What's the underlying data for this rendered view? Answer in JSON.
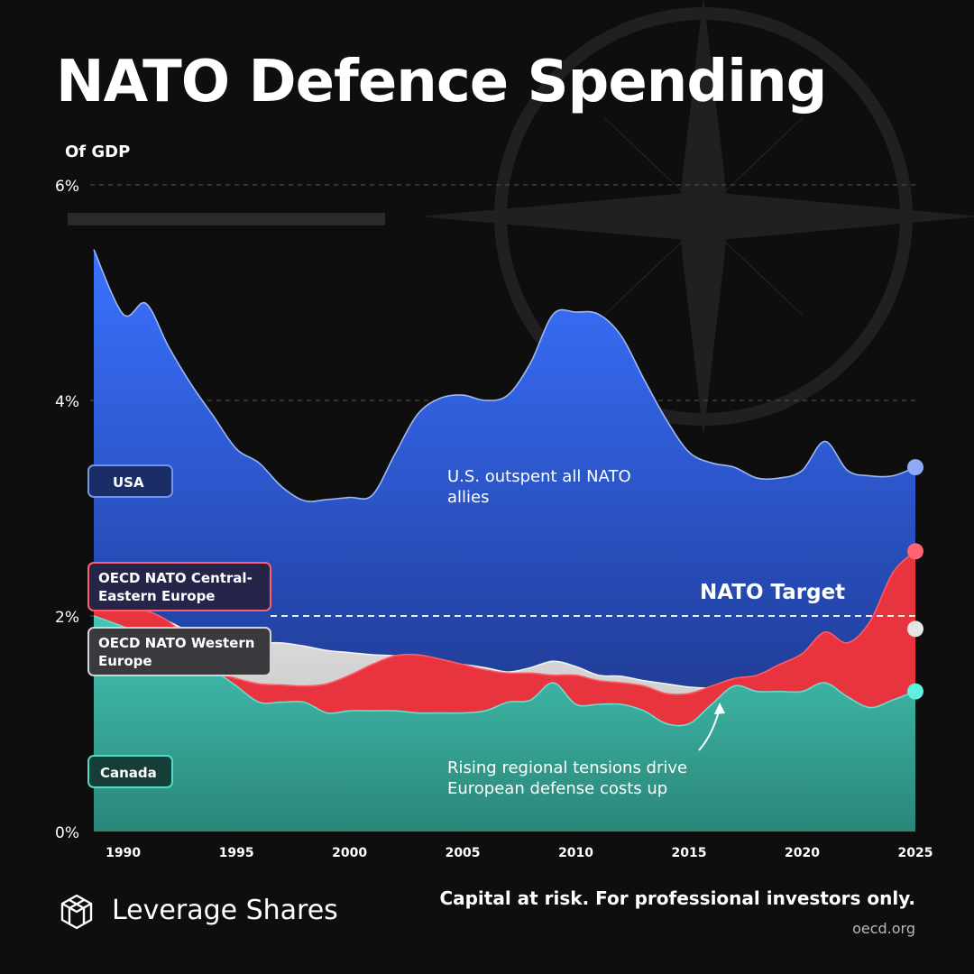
{
  "title": "NATO Defence Spending",
  "subtitle": "Of GDP",
  "brand": "Leverage Shares",
  "disclaimer": "Capital at risk. For professional investors only.",
  "source": "oecd.org",
  "colors": {
    "usa": "#3a6ef5",
    "cee": "#e8343f",
    "we": "#d2d2d2",
    "canada": "#3fbcad",
    "background": "#0e0e0f"
  },
  "labels": {
    "usa": "USA",
    "cee": "OECD NATO Central-Eastern Europe",
    "we": "OECD NATO Western Europe",
    "canada": "Canada"
  },
  "annotations": {
    "us_outspent": "U.S. outspent all NATO allies",
    "eu_rising": "Rising regional tensions drive European defense costs up",
    "nato_target": "NATO Target"
  },
  "chart_data": {
    "type": "area",
    "title": "NATO Defence Spending",
    "ylabel": "Of GDP",
    "ylim": [
      0,
      6
    ],
    "xlim": [
      1988.5,
      2025.5
    ],
    "yticks": [
      0,
      2,
      4,
      6
    ],
    "ytick_labels": [
      "0%",
      "2%",
      "4%",
      "6%"
    ],
    "xticks": [
      1990,
      1995,
      2000,
      2005,
      2010,
      2015,
      2020,
      2025
    ],
    "xtick_labels": [
      "1990",
      "1995",
      "2000",
      "2005",
      "2010",
      "2015",
      "2020",
      "2025"
    ],
    "target": 2.0,
    "x": [
      1988.7,
      1990,
      1991,
      1992,
      1993,
      1994,
      1995,
      1996,
      1997,
      1998,
      1999,
      2000,
      2001,
      2002,
      2003,
      2004,
      2005,
      2006,
      2007,
      2008,
      2009,
      2010,
      2011,
      2012,
      2013,
      2014,
      2015,
      2016,
      2017,
      2018,
      2019,
      2020,
      2021,
      2022,
      2023,
      2024,
      2025
    ],
    "series": [
      {
        "name": "Canada",
        "values": [
          2.0,
          1.9,
          1.8,
          1.75,
          1.65,
          1.5,
          1.35,
          1.2,
          1.2,
          1.2,
          1.1,
          1.12,
          1.12,
          1.12,
          1.1,
          1.1,
          1.1,
          1.12,
          1.2,
          1.22,
          1.38,
          1.18,
          1.18,
          1.18,
          1.12,
          1.0,
          1.0,
          1.18,
          1.35,
          1.3,
          1.3,
          1.3,
          1.38,
          1.25,
          1.15,
          1.22,
          1.3
        ]
      },
      {
        "name": "OECD NATO Central-Eastern Europe",
        "values": [
          2.15,
          2.1,
          2.05,
          1.95,
          1.75,
          1.5,
          1.42,
          1.37,
          1.36,
          1.35,
          1.37,
          1.45,
          1.55,
          1.63,
          1.64,
          1.6,
          1.55,
          1.5,
          1.47,
          1.47,
          1.45,
          1.45,
          1.4,
          1.38,
          1.35,
          1.28,
          1.28,
          1.35,
          1.42,
          1.45,
          1.55,
          1.65,
          1.85,
          1.75,
          1.95,
          2.4,
          2.6
        ]
      },
      {
        "name": "OECD NATO Western Europe",
        "values": [
          2.15,
          2.1,
          2.05,
          1.95,
          1.85,
          1.8,
          1.77,
          1.75,
          1.75,
          1.72,
          1.68,
          1.66,
          1.64,
          1.63,
          1.6,
          1.57,
          1.55,
          1.52,
          1.48,
          1.52,
          1.58,
          1.53,
          1.45,
          1.44,
          1.4,
          1.37,
          1.34,
          1.33,
          1.34,
          1.36,
          1.4,
          1.42,
          1.56,
          1.56,
          1.6,
          1.7,
          1.88
        ]
      },
      {
        "name": "USA",
        "values": [
          5.4,
          4.8,
          4.9,
          4.5,
          4.15,
          3.85,
          3.55,
          3.42,
          3.2,
          3.07,
          3.08,
          3.1,
          3.12,
          3.5,
          3.87,
          4.02,
          4.05,
          4.0,
          4.05,
          4.35,
          4.8,
          4.82,
          4.8,
          4.6,
          4.2,
          3.82,
          3.52,
          3.42,
          3.38,
          3.28,
          3.28,
          3.35,
          3.62,
          3.35,
          3.3,
          3.3,
          3.38
        ]
      }
    ]
  }
}
